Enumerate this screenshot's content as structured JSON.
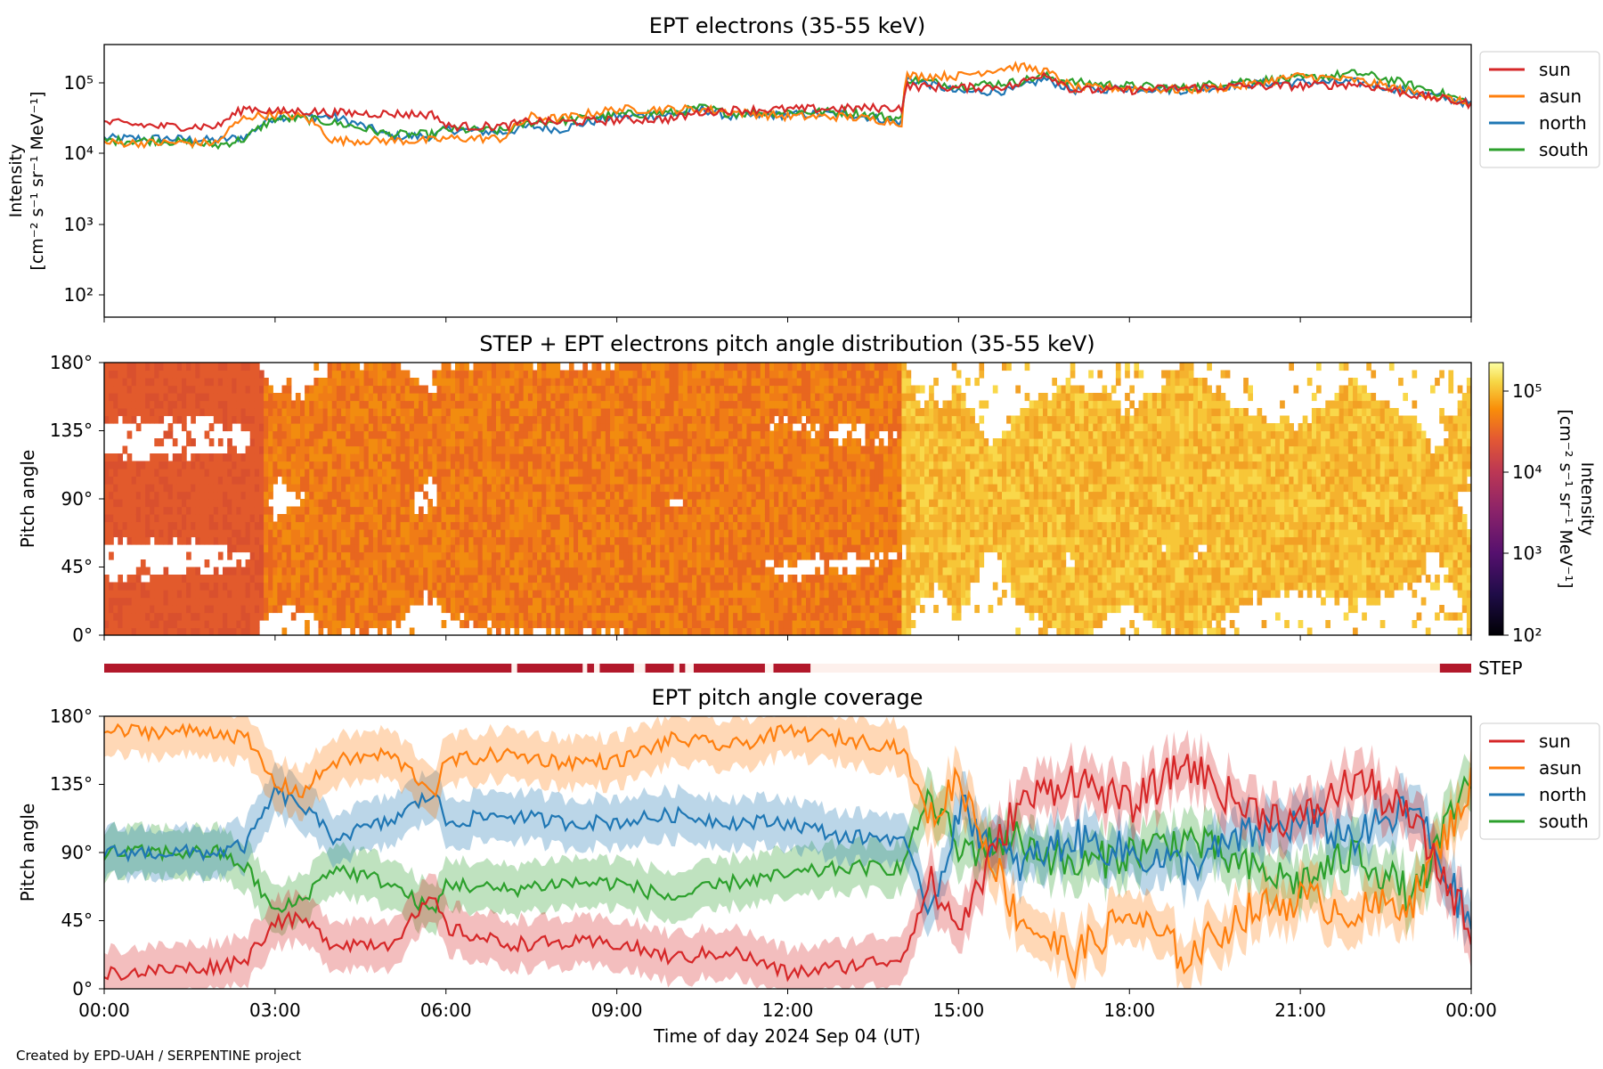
{
  "footer": "Created by EPD-UAH / SERPENTINE project",
  "panels": {
    "top": {
      "title": "EPT electrons (35-55 keV)",
      "ylabel_line1": "Intensity",
      "ylabel_line2": "[cm⁻² s⁻¹ sr⁻¹ MeV⁻¹]",
      "y_ticks": [
        "10²",
        "10³",
        "10⁴",
        "10⁵"
      ]
    },
    "middle": {
      "title": "STEP + EPT electrons pitch angle distribution (35-55 keV)",
      "ylabel": "Pitch angle",
      "y_ticks": [
        "0°",
        "45°",
        "90°",
        "135°",
        "180°"
      ],
      "colorbar_label_line1": "Intensity",
      "colorbar_label_line2": "[cm⁻² s⁻¹ sr⁻¹ MeV⁻¹]",
      "colorbar_ticks": [
        "10²",
        "10³",
        "10⁴",
        "10⁵"
      ]
    },
    "step": {
      "label": "STEP"
    },
    "bottom": {
      "title": "EPT pitch angle coverage",
      "ylabel": "Pitch angle",
      "y_ticks": [
        "0°",
        "45°",
        "90°",
        "135°",
        "180°"
      ],
      "x_ticks": [
        "00:00",
        "03:00",
        "06:00",
        "09:00",
        "12:00",
        "15:00",
        "18:00",
        "21:00",
        "00:00"
      ],
      "xlabel": "Time of day 2024 Sep 04 (UT)"
    }
  },
  "legend": [
    "sun",
    "asun",
    "north",
    "south"
  ],
  "colors": {
    "sun": "#d62728",
    "asun": "#ff7f0e",
    "north": "#1f77b4",
    "south": "#2ca02c",
    "step_on": "#b2182b",
    "step_off": "#fdf0ec"
  },
  "chart_data": [
    {
      "type": "line",
      "title": "EPT electrons (35-55 keV)",
      "ylabel": "Intensity [cm⁻² s⁻¹ sr⁻¹ MeV⁻¹]",
      "yscale": "log",
      "ylim": [
        50,
        300000
      ],
      "x_unit": "hours UT",
      "xlim": [
        0,
        24
      ],
      "x": [
        0,
        1,
        2,
        2.5,
        3,
        3.5,
        4,
        5,
        5.8,
        6,
        7,
        7.5,
        8,
        9,
        10,
        10.5,
        11,
        12,
        13,
        14,
        14.1,
        15,
        16,
        16.5,
        17,
        18,
        19,
        20,
        21,
        22,
        23,
        24
      ],
      "series": [
        {
          "name": "sun",
          "values": [
            25000,
            22000,
            22000,
            40000,
            35000,
            36000,
            34000,
            33000,
            32000,
            22000,
            22000,
            26000,
            25000,
            27000,
            28000,
            35000,
            37000,
            38000,
            39000,
            40000,
            80000,
            75000,
            80000,
            120000,
            70000,
            70000,
            75000,
            80000,
            80000,
            85000,
            60000,
            45000
          ]
        },
        {
          "name": "asun",
          "values": [
            13000,
            13000,
            13000,
            30000,
            32000,
            30000,
            14000,
            14000,
            14000,
            15000,
            15000,
            30000,
            28000,
            38000,
            38000,
            38000,
            35000,
            30000,
            30000,
            25000,
            110000,
            110000,
            150000,
            130000,
            75000,
            75000,
            70000,
            80000,
            110000,
            95000,
            65000,
            45000
          ]
        },
        {
          "name": "north",
          "values": [
            15000,
            15000,
            14000,
            16000,
            30000,
            30000,
            30000,
            16000,
            16000,
            20000,
            18000,
            22000,
            20000,
            30000,
            32000,
            38000,
            30000,
            32000,
            33000,
            25000,
            100000,
            65000,
            70000,
            100000,
            70000,
            75000,
            70000,
            85000,
            90000,
            90000,
            65000,
            45000
          ]
        },
        {
          "name": "south",
          "values": [
            14000,
            14000,
            12000,
            15000,
            28000,
            28000,
            25000,
            17000,
            17000,
            20000,
            19000,
            25000,
            26000,
            32000,
            34000,
            40000,
            33000,
            35000,
            35000,
            28000,
            100000,
            80000,
            90000,
            110000,
            90000,
            80000,
            75000,
            95000,
            100000,
            120000,
            80000,
            45000
          ]
        }
      ]
    },
    {
      "type": "heatmap",
      "title": "STEP + EPT electrons pitch angle distribution (35-55 keV)",
      "ylabel": "Pitch angle",
      "ylim": [
        0,
        180
      ],
      "xlim": [
        0,
        24
      ],
      "colorbar": {
        "label": "Intensity [cm⁻² s⁻¹ sr⁻¹ MeV⁻¹]",
        "scale": "log",
        "range": [
          100,
          200000
        ],
        "colormap": "inferno"
      }
    },
    {
      "type": "line",
      "title": "EPT pitch angle coverage",
      "ylabel": "Pitch angle",
      "xlabel": "Time of day 2024 Sep 04 (UT)",
      "ylim": [
        0,
        180
      ],
      "xlim": [
        0,
        24
      ],
      "x": [
        0,
        1,
        2,
        2.5,
        3,
        3.5,
        4,
        5,
        5.8,
        6,
        7,
        8,
        9,
        10,
        11,
        12,
        13,
        14,
        14.5,
        15,
        16,
        17,
        18,
        19,
        20,
        21,
        22,
        23,
        24
      ],
      "series": [
        {
          "name": "sun",
          "values": [
            10,
            12,
            15,
            20,
            45,
            45,
            30,
            30,
            60,
            40,
            30,
            30,
            30,
            20,
            25,
            10,
            15,
            20,
            70,
            40,
            120,
            140,
            120,
            150,
            120,
            110,
            140,
            110,
            40
          ]
        },
        {
          "name": "asun",
          "values": [
            170,
            170,
            170,
            165,
            135,
            130,
            150,
            155,
            130,
            150,
            155,
            150,
            150,
            165,
            160,
            170,
            165,
            160,
            110,
            140,
            50,
            20,
            50,
            20,
            50,
            60,
            50,
            60,
            135
          ]
        },
        {
          "name": "north",
          "values": [
            90,
            90,
            90,
            95,
            130,
            120,
            100,
            110,
            130,
            110,
            115,
            110,
            110,
            115,
            110,
            110,
            100,
            100,
            50,
            120,
            80,
            100,
            90,
            80,
            100,
            110,
            100,
            120,
            40
          ]
        },
        {
          "name": "south",
          "values": [
            90,
            90,
            90,
            80,
            50,
            60,
            80,
            70,
            50,
            70,
            65,
            70,
            70,
            60,
            70,
            75,
            80,
            80,
            130,
            90,
            100,
            80,
            90,
            100,
            80,
            70,
            90,
            60,
            140
          ]
        }
      ]
    }
  ]
}
